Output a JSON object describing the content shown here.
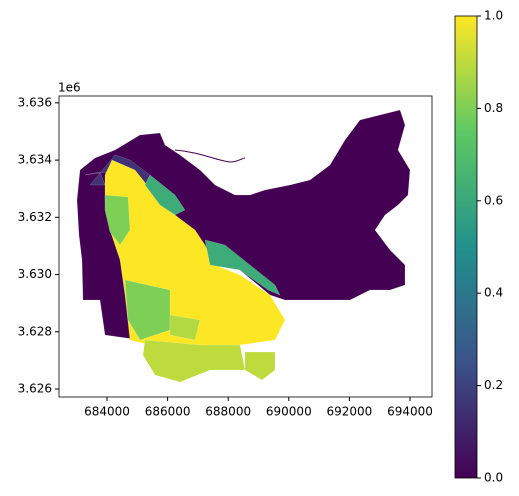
{
  "chart_data": {
    "type": "choropleth",
    "axis_offset_label": "1e6",
    "xlim": [
      682416,
      694726
    ],
    "xticks": [
      684000,
      686000,
      688000,
      690000,
      692000,
      694000
    ],
    "ylim": [
      3.62572,
      3.63624
    ],
    "yticks": [
      {
        "value": 3.626,
        "label": "3.626"
      },
      {
        "value": 3.628,
        "label": "3.628"
      },
      {
        "value": 3.63,
        "label": "3.630"
      },
      {
        "value": 3.632,
        "label": "3.632"
      },
      {
        "value": 3.634,
        "label": "3.634"
      },
      {
        "value": 3.636,
        "label": "3.636"
      }
    ],
    "colormap": "viridis",
    "clim": [
      0,
      1
    ],
    "colorbar_ticks": [
      {
        "value": 0,
        "label": "0.0"
      },
      {
        "value": 0.2,
        "label": "0.2"
      },
      {
        "value": 0.4,
        "label": "0.4"
      },
      {
        "value": 0.6,
        "label": "0.6"
      },
      {
        "value": 0.8,
        "label": "0.8"
      },
      {
        "value": 1,
        "label": "1.0"
      }
    ],
    "values": [
      0,
      0.15,
      1,
      0.8,
      0.8,
      0.9,
      0.9,
      0.88,
      0.62,
      0.62
    ]
  }
}
